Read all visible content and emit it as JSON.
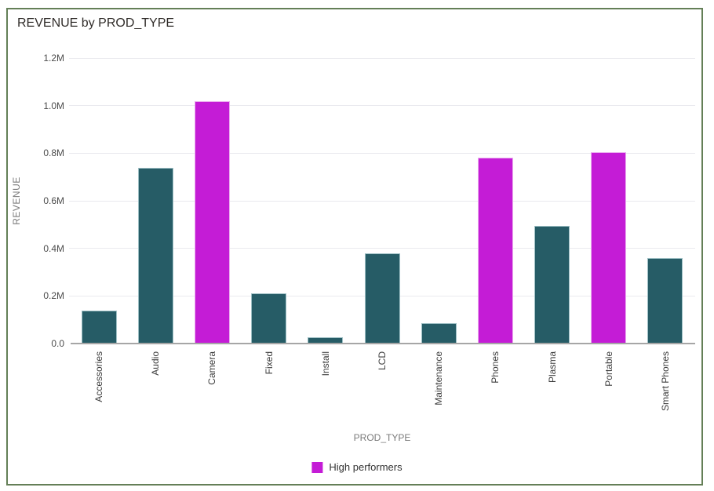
{
  "card": {
    "title": "REVENUE by PROD_TYPE"
  },
  "colors": {
    "bar_default": "#265C66",
    "bar_default_stroke": "#9DBFC4",
    "bar_high": "#C41CD6",
    "bar_high_stroke": "#EBAEEF",
    "frame_border": "#647F57",
    "gridline": "#EAEAEF",
    "axis_line": "#A6A6A6"
  },
  "chart_data": {
    "type": "bar",
    "title": "REVENUE by PROD_TYPE",
    "xlabel": "PROD_TYPE",
    "ylabel": "REVENUE",
    "ylim": [
      0,
      1200000
    ],
    "grid": true,
    "legend_position": "bottom",
    "yticks": [
      {
        "value": 0,
        "label": "0.0"
      },
      {
        "value": 200000,
        "label": "0.2M"
      },
      {
        "value": 400000,
        "label": "0.4M"
      },
      {
        "value": 600000,
        "label": "0.6M"
      },
      {
        "value": 800000,
        "label": "0.8M"
      },
      {
        "value": 1000000,
        "label": "1.0M"
      },
      {
        "value": 1200000,
        "label": "1.2M"
      }
    ],
    "categories": [
      "Accessories",
      "Audio",
      "Camera",
      "Fixed",
      "Install",
      "LCD",
      "Maintenance",
      "Phones",
      "Plasma",
      "Portable",
      "Smart Phones"
    ],
    "values": [
      140000,
      740000,
      1020000,
      210000,
      28000,
      380000,
      85000,
      780000,
      495000,
      805000,
      360000
    ],
    "high_performers": [
      "Camera",
      "Phones",
      "Portable"
    ],
    "legend": [
      {
        "label": "High performers",
        "color": "#C41CD6"
      }
    ]
  }
}
